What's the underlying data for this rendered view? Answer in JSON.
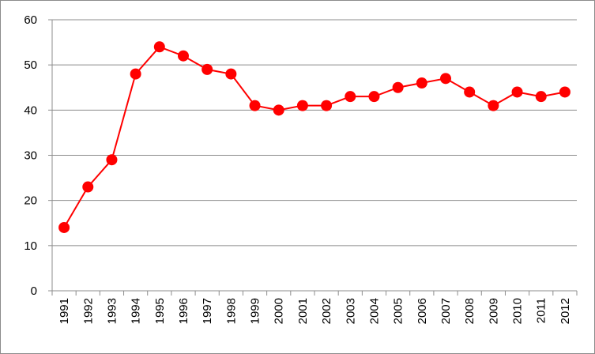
{
  "chart_data": {
    "type": "line",
    "title": "",
    "xlabel": "",
    "ylabel": "",
    "x": [
      "1991",
      "1992",
      "1993",
      "1994",
      "1995",
      "1996",
      "1997",
      "1998",
      "1999",
      "2000",
      "2001",
      "2002",
      "2003",
      "2004",
      "2005",
      "2006",
      "2007",
      "2008",
      "2009",
      "2010",
      "2011",
      "2012"
    ],
    "series": [
      {
        "color": "#ff0000",
        "marker": "circle",
        "values": [
          14,
          23,
          29,
          48,
          54,
          52,
          49,
          48,
          41,
          40,
          41,
          41,
          43,
          43,
          45,
          46,
          47,
          44,
          41,
          44,
          43,
          44
        ]
      }
    ],
    "ylim": [
      0,
      60
    ],
    "yticks": [
      "0",
      "10",
      "20",
      "30",
      "40",
      "50",
      "60"
    ],
    "grid": "horizontal",
    "legend": "none"
  }
}
